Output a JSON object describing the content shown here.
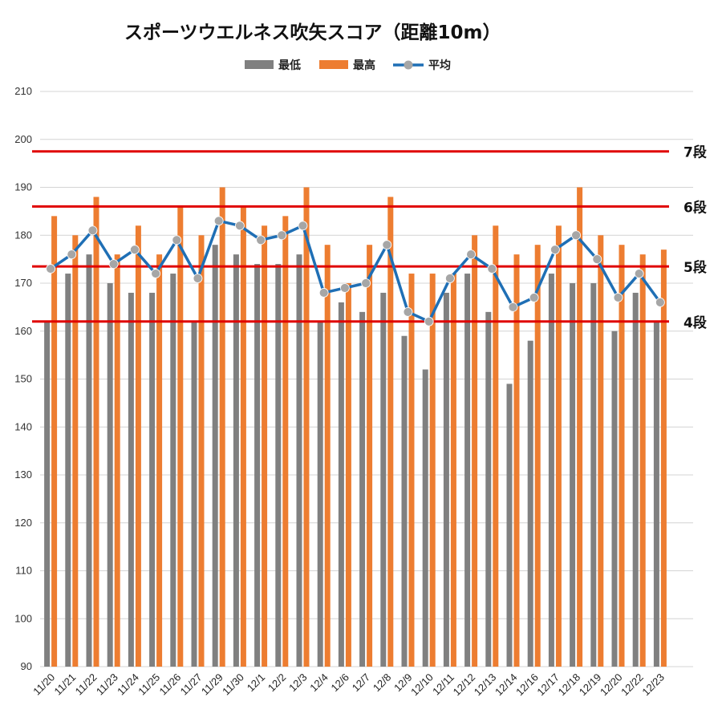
{
  "chart_data": {
    "type": "bar",
    "title": "スポーツウエルネス吹矢スコア（距離10m）",
    "xlabel": "",
    "ylabel": "",
    "ylim": [
      90,
      210
    ],
    "yticks": [
      90,
      100,
      110,
      120,
      130,
      140,
      150,
      160,
      170,
      180,
      190,
      200,
      210
    ],
    "grid": true,
    "legend_position": "top",
    "categories": [
      "11/20",
      "11/21",
      "11/22",
      "11/23",
      "11/24",
      "11/25",
      "11/26",
      "11/27",
      "11/29",
      "11/30",
      "12/1",
      "12/2",
      "12/3",
      "12/4",
      "12/6",
      "12/7",
      "12/8",
      "12/9",
      "12/10",
      "12/11",
      "12/12",
      "12/13",
      "12/14",
      "12/16",
      "12/17",
      "12/18",
      "12/19",
      "12/20",
      "12/22",
      "12/23"
    ],
    "series": [
      {
        "name": "最低",
        "type": "bar",
        "color": "#808080",
        "values": [
          162,
          172,
          176,
          170,
          168,
          168,
          172,
          162,
          178,
          176,
          174,
          174,
          176,
          162,
          166,
          164,
          168,
          159,
          152,
          168,
          172,
          164,
          149,
          158,
          172,
          170,
          170,
          160,
          168,
          162
        ]
      },
      {
        "name": "最高",
        "type": "bar",
        "color": "#ED7D31",
        "values": [
          184,
          180,
          188,
          176,
          182,
          176,
          186,
          180,
          190,
          186,
          182,
          184,
          190,
          178,
          170,
          178,
          188,
          172,
          172,
          172,
          180,
          182,
          176,
          178,
          182,
          190,
          180,
          178,
          176,
          177
        ]
      },
      {
        "name": "平均",
        "type": "line",
        "color": "#1F6FB5",
        "marker_color": "#A6A6A6",
        "values": [
          173,
          176,
          181,
          174,
          177,
          172,
          179,
          171,
          183,
          182,
          179,
          180,
          182,
          168,
          169,
          170,
          178,
          164,
          162,
          171,
          176,
          173,
          165,
          167,
          177,
          180,
          175,
          167,
          172,
          166
        ]
      }
    ],
    "reference_lines": [
      {
        "label": "7段",
        "value": 197.5,
        "color": "#E00000"
      },
      {
        "label": "6段",
        "value": 186,
        "color": "#E00000"
      },
      {
        "label": "5段",
        "value": 173.5,
        "color": "#E00000"
      },
      {
        "label": "4段",
        "value": 162,
        "color": "#E00000"
      }
    ]
  }
}
